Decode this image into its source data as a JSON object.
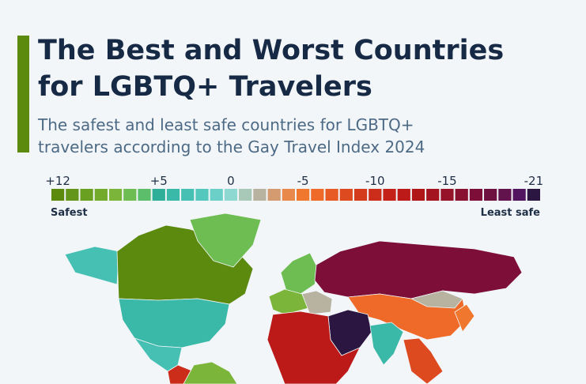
{
  "header": {
    "title_lines": [
      "The Best and Worst Countries",
      "for LGBTQ+ Travelers"
    ],
    "subtitle_lines": [
      "The safest and least safe countries for LGBTQ+",
      "travelers according to the Gay Travel Index 2024"
    ]
  },
  "legend": {
    "values": [
      12,
      11,
      10,
      9,
      8,
      7,
      6,
      5,
      4,
      3,
      2,
      1,
      0,
      -1,
      -2,
      -3,
      -4,
      -5,
      -6,
      -7,
      -8,
      -9,
      -10,
      -11,
      -12,
      -13,
      -14,
      -15,
      -16,
      -17,
      -18,
      -19,
      -20,
      -21
    ],
    "colors": [
      "#5b8a0f",
      "#62951a",
      "#6aa022",
      "#72ab2c",
      "#7bb63a",
      "#6dbd52",
      "#5cbd6a",
      "#2fae9a",
      "#3ab8a8",
      "#45c0b3",
      "#55c8bd",
      "#6bd0c8",
      "#8dd8d0",
      "#a8c8b8",
      "#b8b3a0",
      "#d49a70",
      "#e8884a",
      "#f0782e",
      "#ef6a28",
      "#e85a24",
      "#de4a20",
      "#d43a1c",
      "#cc2c1a",
      "#c42218",
      "#bb1a18",
      "#b01618",
      "#a31420",
      "#961228",
      "#8a1030",
      "#7c0e38",
      "#6e1040",
      "#62124c",
      "#521660",
      "#2a1640"
    ],
    "ticks": [
      {
        "value": 12,
        "label": "+12"
      },
      {
        "value": 5,
        "label": "+5"
      },
      0,
      -5,
      -10,
      -15,
      -21
    ],
    "low_label": "Safest",
    "high_label": "Least safe"
  }
}
